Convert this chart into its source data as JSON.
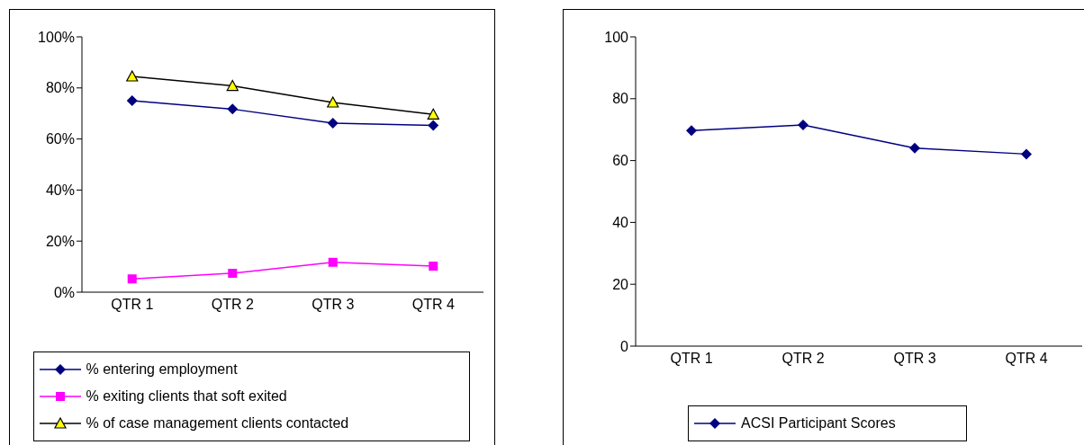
{
  "chart_data": [
    {
      "type": "line",
      "categories": [
        "QTR 1",
        "QTR 2",
        "QTR 3",
        "QTR 4"
      ],
      "ylim": [
        0,
        100
      ],
      "yticks": [
        {
          "value": 0,
          "label": "0%"
        },
        {
          "value": 20,
          "label": "20%"
        },
        {
          "value": 40,
          "label": "40%"
        },
        {
          "value": 60,
          "label": "60%"
        },
        {
          "value": 80,
          "label": "80%"
        },
        {
          "value": 100,
          "label": "100%"
        }
      ],
      "legend": "bottom",
      "grid": false,
      "series": [
        {
          "name": "% entering employment",
          "color": "#000080",
          "marker": "diamond",
          "values": [
            75,
            71.7,
            66.2,
            65.3
          ]
        },
        {
          "name": "% exiting clients that soft exited",
          "color": "#ff00ff",
          "marker": "square",
          "values": [
            5.2,
            7.4,
            11.7,
            10.2
          ]
        },
        {
          "name": "% of case management clients contacted",
          "color": "#000000",
          "marker": "triangle",
          "values": [
            84.5,
            80.8,
            74.3,
            69.6
          ]
        }
      ]
    },
    {
      "type": "line",
      "categories": [
        "QTR 1",
        "QTR 2",
        "QTR 3",
        "QTR 4"
      ],
      "ylim": [
        0,
        100
      ],
      "yticks": [
        0,
        20,
        40,
        60,
        80,
        100
      ],
      "legend": "bottom",
      "grid": false,
      "series": [
        {
          "name": "ACSI Participant Scores",
          "color": "#000080",
          "marker": "diamond",
          "values": [
            69.7,
            71.5,
            64,
            62.1
          ]
        }
      ]
    }
  ]
}
